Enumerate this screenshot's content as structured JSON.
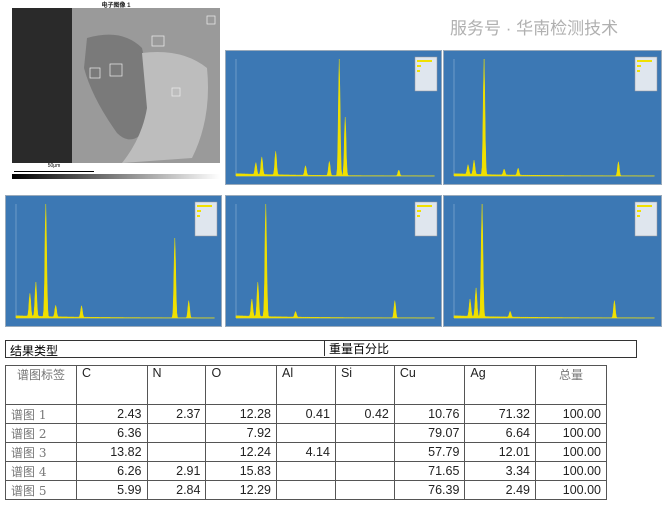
{
  "sem_image": {
    "title": "电子图像 1",
    "scale_label": "50μm"
  },
  "spectra": [
    {
      "id": "spectrum-1",
      "color": "#f0e000"
    },
    {
      "id": "spectrum-2",
      "color": "#f0e000"
    },
    {
      "id": "spectrum-3",
      "color": "#f0e000"
    },
    {
      "id": "spectrum-4",
      "color": "#f0e000"
    },
    {
      "id": "spectrum-5",
      "color": "#f0e000"
    }
  ],
  "result_bar": {
    "type_label": "结果类型",
    "value_label": "重量百分比"
  },
  "table": {
    "headers": [
      "谱图标签",
      "C",
      "N",
      "O",
      "Al",
      "Si",
      "Cu",
      "Ag",
      "总量"
    ],
    "rows": [
      [
        "谱图 1",
        "2.43",
        "2.37",
        "12.28",
        "0.41",
        "0.42",
        "10.76",
        "71.32",
        "100.00"
      ],
      [
        "谱图 2",
        "6.36",
        "",
        "7.92",
        "",
        "",
        "79.07",
        "6.64",
        "100.00"
      ],
      [
        "谱图 3",
        "13.82",
        "",
        "12.24",
        "4.14",
        "",
        "57.79",
        "12.01",
        "100.00"
      ],
      [
        "谱图 4",
        "6.26",
        "2.91",
        "15.83",
        "",
        "",
        "71.65",
        "3.34",
        "100.00"
      ],
      [
        "谱图 5",
        "5.99",
        "2.84",
        "12.29",
        "",
        "",
        "76.39",
        "2.49",
        "100.00"
      ]
    ]
  },
  "watermark": "服务号 · 华南检测技术",
  "colors": {
    "spectrum_bg": "#3c78b4",
    "peak": "#f0e000"
  }
}
